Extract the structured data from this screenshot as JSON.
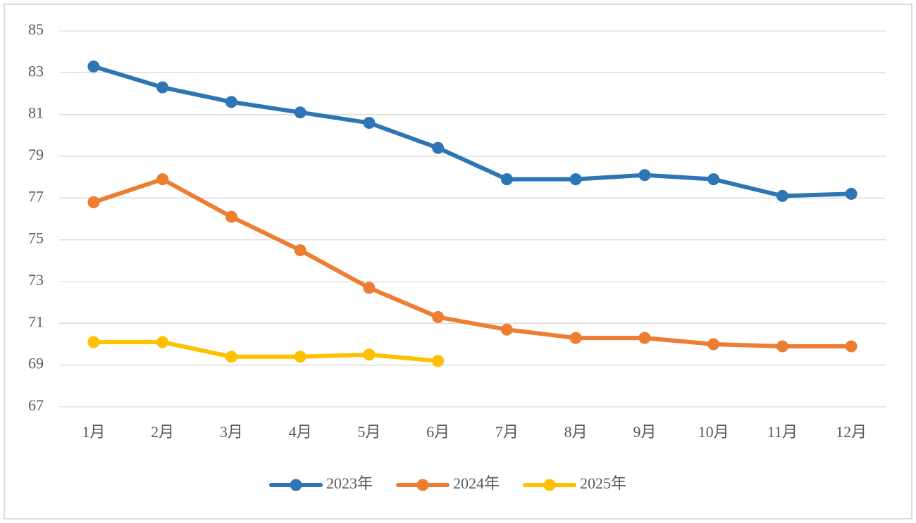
{
  "chart_data": {
    "type": "line",
    "categories": [
      "1月",
      "2月",
      "3月",
      "4月",
      "5月",
      "6月",
      "7月",
      "8月",
      "9月",
      "10月",
      "11月",
      "12月"
    ],
    "series": [
      {
        "name": "2023年",
        "color": "#2e75b6",
        "values": [
          83.3,
          82.3,
          81.6,
          81.1,
          80.6,
          79.4,
          77.9,
          77.9,
          78.1,
          77.9,
          77.1,
          77.2
        ]
      },
      {
        "name": "2024年",
        "color": "#ed7d31",
        "values": [
          76.8,
          77.9,
          76.1,
          74.5,
          72.7,
          71.3,
          70.7,
          70.3,
          70.3,
          70.0,
          69.9,
          69.9
        ]
      },
      {
        "name": "2025年",
        "color": "#ffc000",
        "values": [
          70.1,
          70.1,
          69.4,
          69.4,
          69.5,
          69.2,
          null,
          null,
          null,
          null,
          null,
          null
        ]
      }
    ],
    "ylim": [
      67,
      85
    ],
    "yticks": [
      67,
      69,
      71,
      73,
      75,
      77,
      79,
      81,
      83,
      85
    ],
    "grid": true,
    "legend": "bottom"
  }
}
